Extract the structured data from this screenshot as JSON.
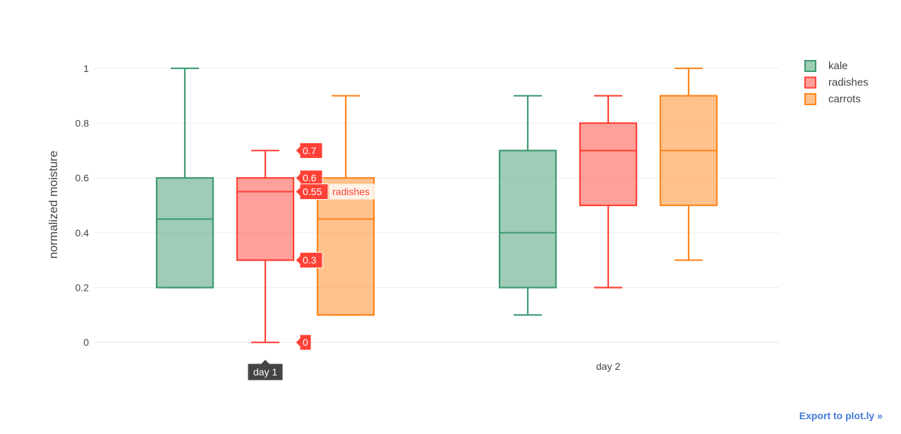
{
  "chart_data": {
    "type": "box",
    "categories": [
      "day 1",
      "day 2"
    ],
    "ylabel": "normalized moisture",
    "ylim": [
      -0.1,
      1.1
    ],
    "yticks": [
      0,
      0.2,
      0.4,
      0.6,
      0.8,
      1
    ],
    "grid": true,
    "legend_position": "top-right",
    "series": [
      {
        "name": "kale",
        "color": "#3d9970",
        "boxes": [
          {
            "category": "day 1",
            "min": 0.2,
            "q1": 0.2,
            "median": 0.45,
            "q3": 0.6,
            "max": 1.0
          },
          {
            "category": "day 2",
            "min": 0.1,
            "q1": 0.2,
            "median": 0.4,
            "q3": 0.7,
            "max": 0.9
          }
        ]
      },
      {
        "name": "radishes",
        "color": "#ff4136",
        "boxes": [
          {
            "category": "day 1",
            "min": 0.0,
            "q1": 0.3,
            "median": 0.55,
            "q3": 0.6,
            "max": 0.7
          },
          {
            "category": "day 2",
            "min": 0.2,
            "q1": 0.5,
            "median": 0.7,
            "q3": 0.8,
            "max": 0.9
          }
        ]
      },
      {
        "name": "carrots",
        "color": "#ff851b",
        "boxes": [
          {
            "category": "day 1",
            "min": 0.1,
            "q1": 0.1,
            "median": 0.45,
            "q3": 0.6,
            "max": 0.9
          },
          {
            "category": "day 2",
            "min": 0.3,
            "q1": 0.5,
            "median": 0.7,
            "q3": 0.9,
            "max": 1.0
          }
        ]
      }
    ],
    "hover": {
      "series": "radishes",
      "category": "day 1",
      "labels": [
        "0.7",
        "0.6",
        "0.55",
        "0.3",
        "0"
      ],
      "series_label": "radishes",
      "x_label": "day 1"
    }
  },
  "export_link": "Export to plot.ly »"
}
